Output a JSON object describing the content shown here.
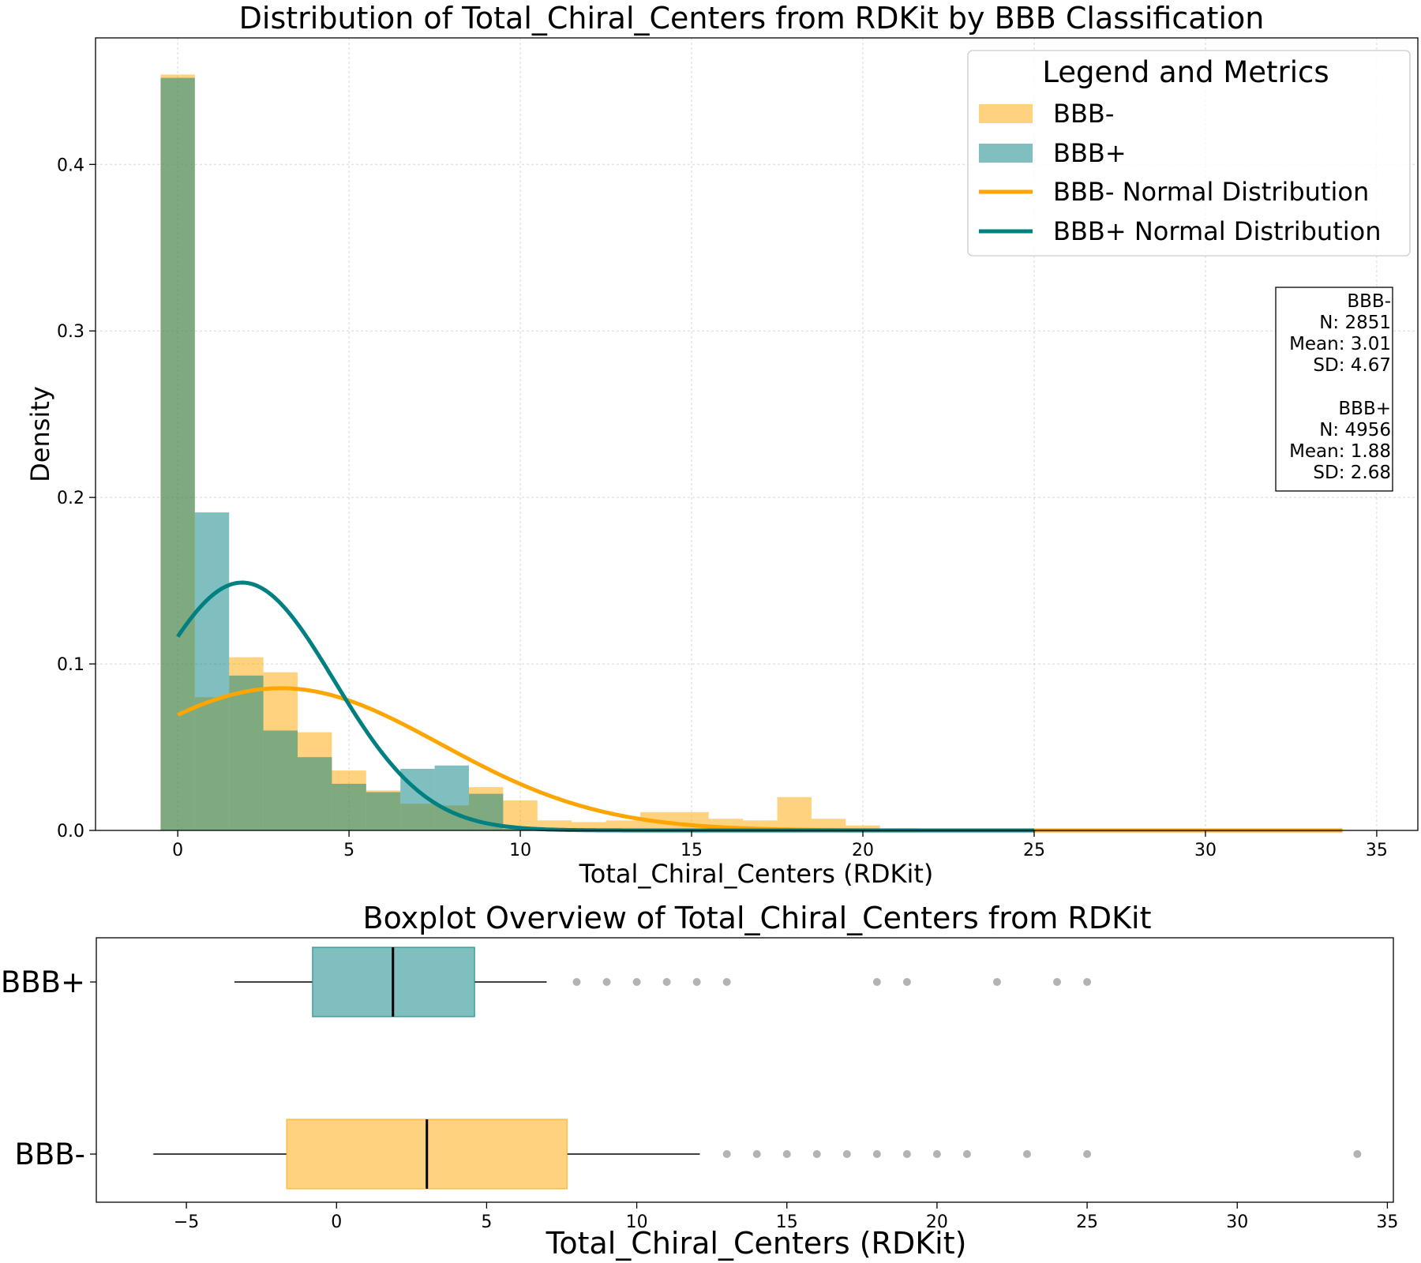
{
  "chart_data": [
    {
      "type": "histogram",
      "title": "Distribution of Total_Chiral_Centers from RDKit by BBB Classification",
      "xlabel": "Total_Chiral_Centers (RDKit)",
      "ylabel": "Density",
      "xlim": [
        -2.4,
        36.2
      ],
      "ylim": [
        0,
        0.476
      ],
      "xticks": [
        0,
        5,
        10,
        15,
        20,
        25,
        30,
        35
      ],
      "yticks": [
        0.0,
        0.1,
        0.2,
        0.3,
        0.4
      ],
      "grid": true,
      "bin_edges_bbb_plus": [
        -0.5,
        0.5,
        1.5,
        2.5,
        3.5,
        4.5,
        5.5,
        6.5,
        7.5,
        8.5,
        9.5,
        10.5,
        11.5,
        12.5,
        13.5,
        14.5,
        15.5,
        16.5,
        17.5,
        18.5,
        19.5,
        20.5,
        21.5,
        22.5,
        23.5,
        24.5,
        25.0
      ],
      "bin_edges_bbb_minus": [
        -0.5,
        0.5,
        1.5,
        2.5,
        3.5,
        4.5,
        5.5,
        6.5,
        7.5,
        8.5,
        9.5,
        10.5,
        11.5,
        12.5,
        13.5,
        14.5,
        15.5,
        16.5,
        17.5,
        18.5,
        19.5,
        20.5,
        21.5,
        22.5,
        23.5,
        24.5,
        25.5,
        26.5,
        27.5,
        28.5,
        29.5,
        30.5,
        31.5,
        32.5,
        33.5,
        34.0
      ],
      "series": [
        {
          "name": "BBB-",
          "color": "#FFA500",
          "values": [
            0.454,
            0.08,
            0.104,
            0.095,
            0.059,
            0.036,
            0.024,
            0.016,
            0.015,
            0.026,
            0.018,
            0.006,
            0.005,
            0.006,
            0.011,
            0.011,
            0.007,
            0.006,
            0.02,
            0.007,
            0.003,
            0.001,
            0.001,
            0.001,
            0.001,
            0.001,
            0.001,
            0.001,
            0.001,
            0.001,
            0.001,
            0.001,
            0.001,
            0.001,
            0.001
          ]
        },
        {
          "name": "BBB+",
          "color": "#008080",
          "values": [
            0.452,
            0.191,
            0.093,
            0.06,
            0.044,
            0.028,
            0.023,
            0.037,
            0.039,
            0.022,
            0.001,
            0.0008,
            0.0006,
            0.0005,
            0.0004,
            0.0003,
            0.0003,
            0.0002,
            0.0002,
            0.0002,
            0.0002,
            0.0002,
            0.0002,
            0.0002,
            0.0002,
            0.0002
          ]
        }
      ],
      "normal_curves": [
        {
          "name": "BBB- Normal Distribution",
          "color": "#FFA500",
          "mean": 3.01,
          "sd": 4.67,
          "x_range": [
            0,
            34
          ]
        },
        {
          "name": "BBB+ Normal Distribution",
          "color": "#008080",
          "mean": 1.88,
          "sd": 2.68,
          "x_range": [
            0,
            25
          ]
        }
      ],
      "legend": {
        "title": "Legend and Metrics",
        "placement": "top-right",
        "entries": [
          {
            "label": "BBB-",
            "kind": "patch",
            "color": "#FFA500"
          },
          {
            "label": "BBB+",
            "kind": "patch",
            "color": "#008080"
          },
          {
            "label": "BBB- Normal Distribution",
            "kind": "line",
            "color": "#FFA500"
          },
          {
            "label": "BBB+ Normal Distribution",
            "kind": "line",
            "color": "#008080"
          }
        ]
      },
      "stats_box": {
        "placement": "right",
        "lines": [
          "BBB-",
          "N: 2851",
          "Mean: 3.01",
          "SD: 4.67",
          "",
          "BBB+",
          "N: 4956",
          "Mean: 1.88",
          "SD: 2.68"
        ]
      }
    },
    {
      "type": "boxplot",
      "title": "Boxplot Overview of Total_Chiral_Centers from RDKit",
      "xlabel": "Total_Chiral_Centers (RDKit)",
      "xlim": [
        -8.0,
        35.2
      ],
      "xticks": [
        -5,
        0,
        5,
        10,
        15,
        20,
        25,
        30,
        35
      ],
      "xtick_labels": [
        "−5",
        "0",
        "5",
        "10",
        "15",
        "20",
        "25",
        "30",
        "35"
      ],
      "grid": false,
      "categories": [
        "BBB+",
        "BBB-"
      ],
      "boxes": [
        {
          "name": "BBB+",
          "color": "#008080",
          "whisker_low": -3.4,
          "q1": -0.8,
          "median": 1.88,
          "q3": 4.6,
          "whisker_high": 7.0,
          "outliers": [
            8,
            9,
            10,
            11,
            12,
            13,
            18,
            19,
            22,
            24,
            25
          ]
        },
        {
          "name": "BBB-",
          "color": "#FFA500",
          "whisker_low": -6.1,
          "q1": -1.66,
          "median": 3.01,
          "q3": 7.68,
          "whisker_high": 12.1,
          "outliers": [
            13,
            14,
            15,
            16,
            17,
            18,
            19,
            20,
            21,
            23,
            25,
            34
          ]
        }
      ]
    }
  ]
}
